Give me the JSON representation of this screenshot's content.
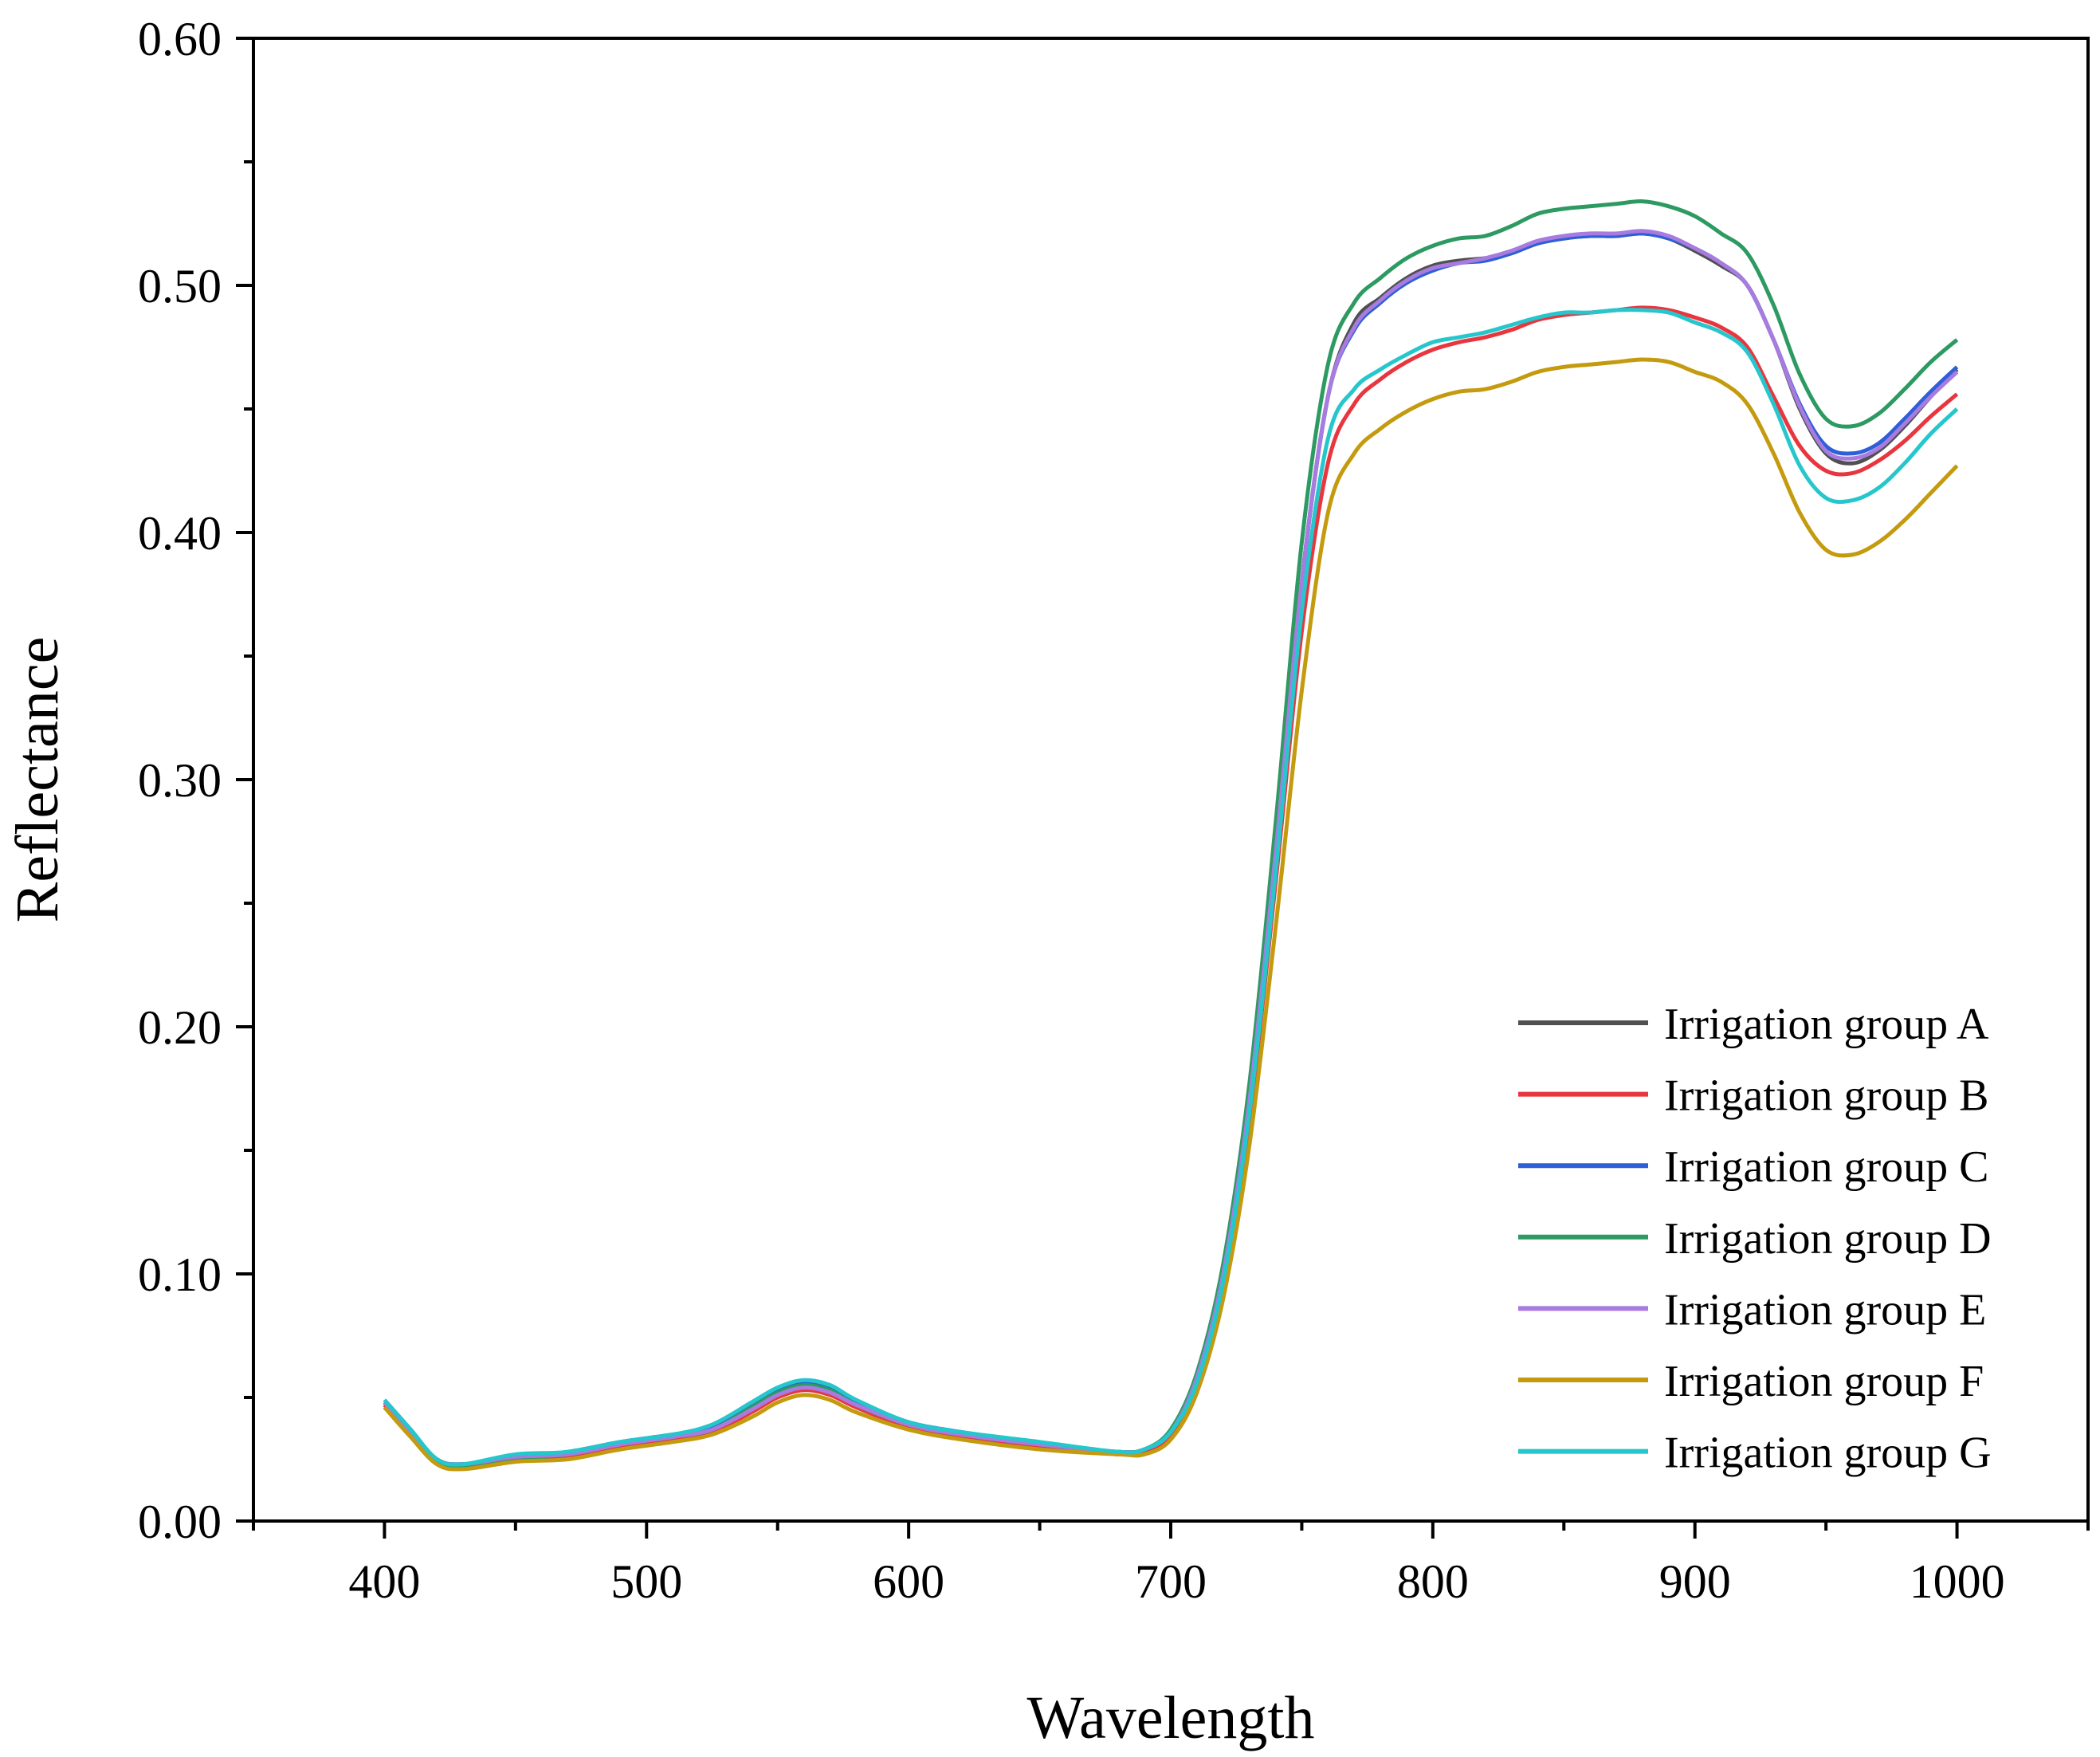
{
  "chart_data": {
    "type": "line",
    "title": "",
    "xlabel": "Wavelength",
    "ylabel": "Reflectance",
    "xlim": [
      350,
      1050
    ],
    "ylim": [
      0.0,
      0.6
    ],
    "grid": false,
    "legend_position": "bottom-right",
    "x_tick_labels": [
      "400",
      "500",
      "600",
      "700",
      "800",
      "900",
      "1000"
    ],
    "y_tick_labels": [
      "0.00",
      "0.10",
      "0.20",
      "0.30",
      "0.40",
      "0.50",
      "0.60"
    ],
    "x": [
      400,
      410,
      420,
      430,
      450,
      470,
      490,
      510,
      525,
      540,
      550,
      560,
      570,
      580,
      600,
      620,
      650,
      680,
      690,
      700,
      710,
      720,
      730,
      740,
      750,
      760,
      770,
      780,
      790,
      800,
      810,
      820,
      830,
      840,
      850,
      860,
      870,
      880,
      890,
      900,
      910,
      920,
      930,
      940,
      950,
      960,
      970,
      980,
      990,
      1000
    ],
    "series": [
      {
        "name": "Irrigation group A",
        "color": "#505050",
        "values": [
          0.048,
          0.036,
          0.025,
          0.023,
          0.026,
          0.027,
          0.031,
          0.034,
          0.037,
          0.045,
          0.051,
          0.054,
          0.052,
          0.047,
          0.039,
          0.035,
          0.031,
          0.028,
          0.029,
          0.036,
          0.058,
          0.1,
          0.17,
          0.27,
          0.38,
          0.455,
          0.485,
          0.495,
          0.503,
          0.508,
          0.51,
          0.511,
          0.513,
          0.517,
          0.519,
          0.52,
          0.52,
          0.521,
          0.519,
          0.514,
          0.508,
          0.5,
          0.478,
          0.45,
          0.432,
          0.428,
          0.433,
          0.443,
          0.455,
          0.466
        ]
      },
      {
        "name": "Irrigation group B",
        "color": "#e8363f",
        "values": [
          0.047,
          0.035,
          0.024,
          0.022,
          0.025,
          0.026,
          0.03,
          0.033,
          0.036,
          0.044,
          0.05,
          0.053,
          0.051,
          0.046,
          0.038,
          0.034,
          0.03,
          0.027,
          0.028,
          0.035,
          0.056,
          0.096,
          0.163,
          0.258,
          0.36,
          0.428,
          0.452,
          0.462,
          0.469,
          0.474,
          0.477,
          0.479,
          0.482,
          0.486,
          0.488,
          0.489,
          0.49,
          0.491,
          0.49,
          0.487,
          0.483,
          0.475,
          0.455,
          0.435,
          0.425,
          0.424,
          0.429,
          0.437,
          0.447,
          0.456
        ]
      },
      {
        "name": "Irrigation group C",
        "color": "#2e5fd6",
        "values": [
          0.049,
          0.037,
          0.025,
          0.023,
          0.026,
          0.028,
          0.032,
          0.035,
          0.038,
          0.047,
          0.053,
          0.056,
          0.054,
          0.048,
          0.04,
          0.036,
          0.031,
          0.028,
          0.029,
          0.036,
          0.058,
          0.1,
          0.17,
          0.27,
          0.38,
          0.455,
          0.482,
          0.493,
          0.501,
          0.506,
          0.509,
          0.51,
          0.513,
          0.517,
          0.519,
          0.52,
          0.52,
          0.521,
          0.519,
          0.515,
          0.509,
          0.5,
          0.478,
          0.452,
          0.435,
          0.432,
          0.436,
          0.446,
          0.457,
          0.467
        ]
      },
      {
        "name": "Irrigation group D",
        "color": "#2d9a62",
        "values": [
          0.048,
          0.036,
          0.024,
          0.022,
          0.025,
          0.027,
          0.031,
          0.034,
          0.037,
          0.046,
          0.052,
          0.055,
          0.053,
          0.047,
          0.039,
          0.035,
          0.031,
          0.028,
          0.029,
          0.037,
          0.06,
          0.104,
          0.177,
          0.282,
          0.396,
          0.468,
          0.493,
          0.503,
          0.511,
          0.516,
          0.519,
          0.52,
          0.524,
          0.529,
          0.531,
          0.532,
          0.533,
          0.534,
          0.532,
          0.528,
          0.521,
          0.513,
          0.492,
          0.464,
          0.446,
          0.443,
          0.448,
          0.458,
          0.469,
          0.478
        ]
      },
      {
        "name": "Irrigation group E",
        "color": "#a87be0",
        "values": [
          0.048,
          0.036,
          0.025,
          0.023,
          0.026,
          0.027,
          0.031,
          0.034,
          0.037,
          0.045,
          0.051,
          0.054,
          0.052,
          0.047,
          0.039,
          0.035,
          0.031,
          0.028,
          0.029,
          0.036,
          0.058,
          0.1,
          0.17,
          0.27,
          0.38,
          0.455,
          0.483,
          0.494,
          0.502,
          0.507,
          0.509,
          0.511,
          0.514,
          0.518,
          0.52,
          0.521,
          0.521,
          0.522,
          0.52,
          0.515,
          0.509,
          0.5,
          0.478,
          0.451,
          0.433,
          0.43,
          0.434,
          0.444,
          0.455,
          0.465
        ]
      },
      {
        "name": "Irrigation group F",
        "color": "#c49a0e",
        "values": [
          0.046,
          0.034,
          0.023,
          0.021,
          0.024,
          0.025,
          0.029,
          0.032,
          0.035,
          0.042,
          0.048,
          0.051,
          0.049,
          0.044,
          0.037,
          0.033,
          0.029,
          0.027,
          0.027,
          0.033,
          0.052,
          0.09,
          0.152,
          0.24,
          0.336,
          0.408,
          0.432,
          0.442,
          0.449,
          0.454,
          0.457,
          0.458,
          0.461,
          0.465,
          0.467,
          0.468,
          0.469,
          0.47,
          0.469,
          0.465,
          0.461,
          0.452,
          0.432,
          0.408,
          0.393,
          0.391,
          0.396,
          0.405,
          0.416,
          0.427
        ]
      },
      {
        "name": "Irrigation group G",
        "color": "#25c6cc",
        "values": [
          0.049,
          0.037,
          0.025,
          0.023,
          0.027,
          0.028,
          0.032,
          0.035,
          0.039,
          0.048,
          0.054,
          0.057,
          0.055,
          0.049,
          0.04,
          0.036,
          0.032,
          0.028,
          0.029,
          0.036,
          0.056,
          0.097,
          0.165,
          0.262,
          0.368,
          0.438,
          0.458,
          0.466,
          0.472,
          0.477,
          0.479,
          0.481,
          0.484,
          0.487,
          0.489,
          0.489,
          0.49,
          0.49,
          0.489,
          0.485,
          0.481,
          0.473,
          0.452,
          0.427,
          0.414,
          0.413,
          0.418,
          0.428,
          0.44,
          0.45
        ]
      }
    ]
  }
}
